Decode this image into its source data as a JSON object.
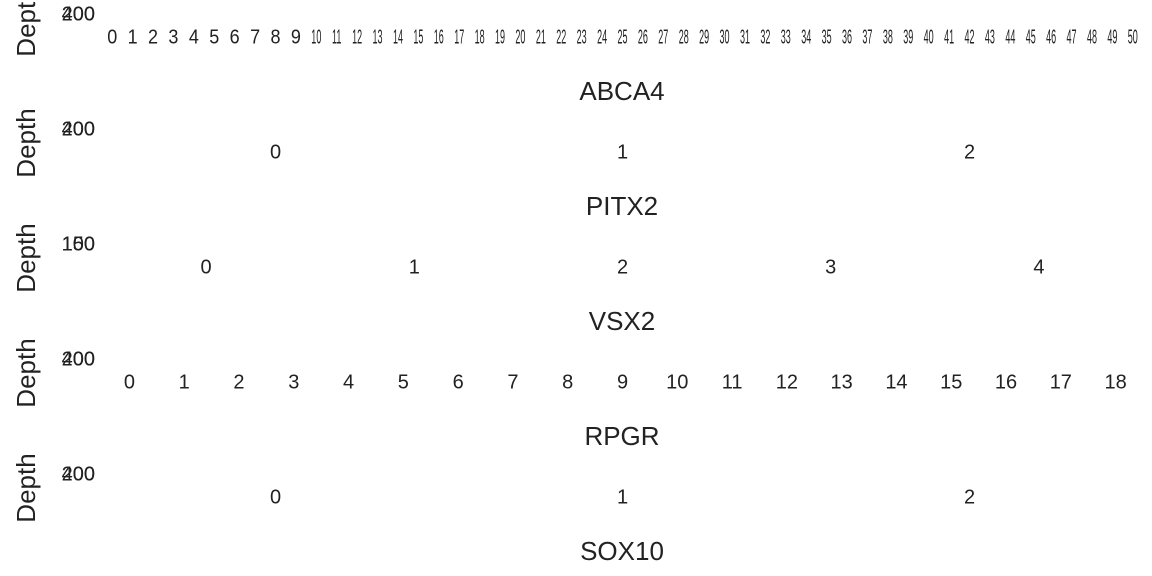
{
  "panels": [
    {
      "ylabel": "Depth",
      "yticks": [
        "200",
        "400"
      ],
      "xticks": [
        0,
        1,
        2,
        3,
        4,
        5,
        6,
        7,
        8,
        9,
        10,
        11,
        12,
        13,
        14,
        15,
        16,
        17,
        18,
        19,
        20,
        21,
        22,
        23,
        24,
        25,
        26,
        27,
        28,
        29,
        30,
        31,
        32,
        33,
        34,
        35,
        36,
        37,
        38,
        39,
        40,
        41,
        42,
        43,
        44,
        45,
        46,
        47,
        48,
        49,
        50
      ]
    },
    {
      "title": "ABCA4",
      "ylabel": "Depth",
      "yticks": [
        "200",
        "400"
      ],
      "xticks": [
        0,
        1,
        2
      ]
    },
    {
      "title": "PITX2",
      "ylabel": "Depth",
      "yticks": [
        "100",
        "150"
      ],
      "xticks": [
        0,
        1,
        2,
        3,
        4
      ]
    },
    {
      "title": "VSX2",
      "ylabel": "Depth",
      "yticks": [
        "200",
        "400"
      ],
      "xticks": [
        0,
        1,
        2,
        3,
        4,
        5,
        6,
        7,
        8,
        9,
        10,
        11,
        12,
        13,
        14,
        15,
        16,
        17,
        18
      ]
    },
    {
      "title": "RPGR",
      "ylabel": "Depth",
      "yticks": [
        "200",
        "400"
      ],
      "xticks": [
        0,
        1,
        2
      ]
    },
    {
      "title": "SOX10"
    }
  ]
}
